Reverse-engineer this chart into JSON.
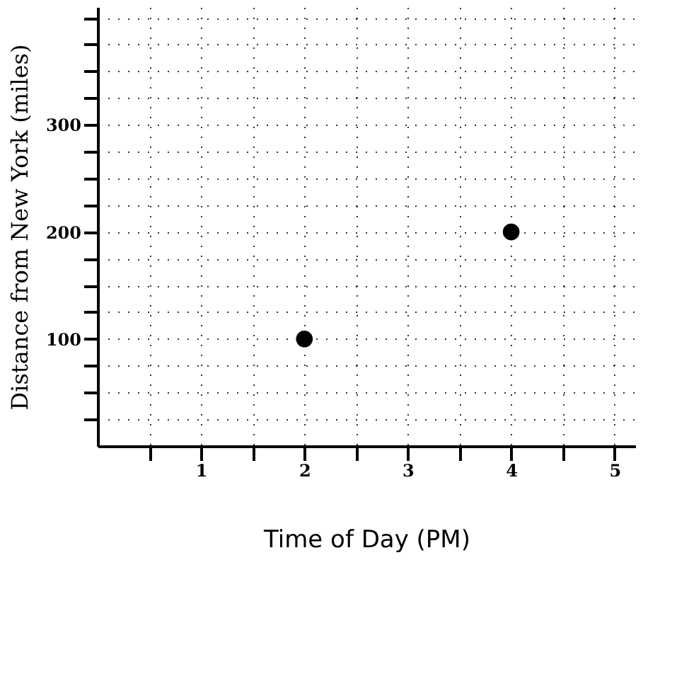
{
  "chart_data": {
    "type": "scatter",
    "xlabel": "Time of Day (PM)",
    "ylabel": "Distance from New York (miles)",
    "x": [
      2,
      4
    ],
    "values": [
      100,
      200
    ],
    "color": "#000000",
    "marker": "circle",
    "grid": true,
    "xlim": [
      0,
      5.2
    ],
    "ylim": [
      0,
      410
    ],
    "xticks": [
      {
        "value": 0.5,
        "label": null
      },
      1,
      {
        "value": 1.5,
        "label": null
      },
      2,
      {
        "value": 2.5,
        "label": null
      },
      3,
      {
        "value": 3.5,
        "label": null
      },
      4,
      {
        "value": 4.5,
        "label": null
      },
      5
    ],
    "yticks": [
      {
        "value": 25,
        "label": null
      },
      {
        "value": 50,
        "label": null
      },
      {
        "value": 75,
        "label": null
      },
      100,
      {
        "value": 125,
        "label": null
      },
      {
        "value": 150,
        "label": null
      },
      {
        "value": 175,
        "label": null
      },
      200,
      {
        "value": 225,
        "label": null
      },
      {
        "value": 250,
        "label": null
      },
      {
        "value": 275,
        "label": null
      },
      300,
      {
        "value": 325,
        "label": null
      },
      {
        "value": 350,
        "label": null
      },
      {
        "value": 375,
        "label": null
      },
      {
        "value": 400,
        "label": null
      }
    ]
  }
}
